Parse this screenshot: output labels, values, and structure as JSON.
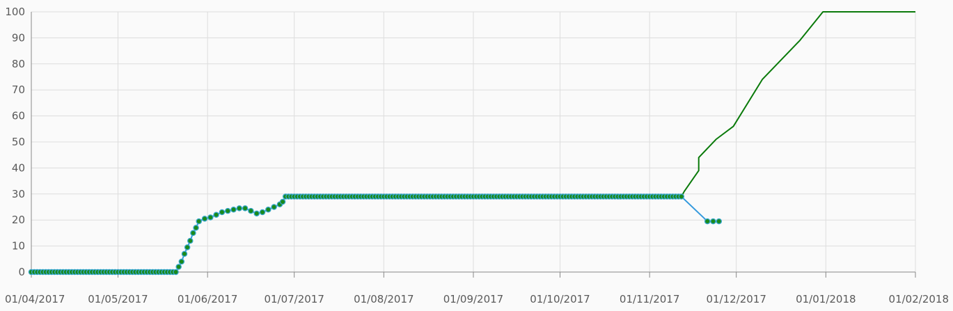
{
  "chart_data": {
    "type": "line",
    "title": "",
    "xlabel": "",
    "ylabel": "",
    "grid": true,
    "legend": "none",
    "x_ticks": [
      "01/04/2017",
      "01/05/2017",
      "01/06/2017",
      "01/07/2017",
      "01/08/2017",
      "01/09/2017",
      "01/10/2017",
      "01/11/2017",
      "01/12/2017",
      "01/01/2018",
      "01/02/2018"
    ],
    "y_ticks": [
      "0",
      "10",
      "20",
      "30",
      "40",
      "50",
      "60",
      "70",
      "80",
      "90",
      "100"
    ],
    "xlim": [
      "2017-04-01",
      "2018-02-01"
    ],
    "ylim": [
      0,
      100
    ],
    "colors": {
      "background": "#fafafa",
      "grid": "#dddddd",
      "axis": "#888888",
      "series_actual": "#3399dd",
      "marker_fill": "#1a8a1a",
      "marker_stroke": "#36a6cc",
      "series_projection": "#0a7a0a"
    },
    "series": [
      {
        "style": "line-with-markers",
        "segments": [
          {
            "from": "2017-04-01",
            "to": "2017-05-21",
            "step_days": 1,
            "value": 0
          },
          {
            "from": "2017-06-28",
            "to": "2017-11-11",
            "step_days": 1,
            "value": 29
          }
        ],
        "points": [
          {
            "x": "2017-05-22",
            "y": 2
          },
          {
            "x": "2017-05-23",
            "y": 4
          },
          {
            "x": "2017-05-24",
            "y": 7
          },
          {
            "x": "2017-05-25",
            "y": 9.5
          },
          {
            "x": "2017-05-26",
            "y": 12
          },
          {
            "x": "2017-05-27",
            "y": 15
          },
          {
            "x": "2017-05-28",
            "y": 17
          },
          {
            "x": "2017-05-29",
            "y": 19.5
          },
          {
            "x": "2017-05-31",
            "y": 20.5
          },
          {
            "x": "2017-06-02",
            "y": 21
          },
          {
            "x": "2017-06-04",
            "y": 22
          },
          {
            "x": "2017-06-06",
            "y": 23
          },
          {
            "x": "2017-06-08",
            "y": 23.5
          },
          {
            "x": "2017-06-10",
            "y": 24
          },
          {
            "x": "2017-06-12",
            "y": 24.5
          },
          {
            "x": "2017-06-14",
            "y": 24.5
          },
          {
            "x": "2017-06-16",
            "y": 23.5
          },
          {
            "x": "2017-06-18",
            "y": 22.5
          },
          {
            "x": "2017-06-20",
            "y": 23
          },
          {
            "x": "2017-06-22",
            "y": 24
          },
          {
            "x": "2017-06-24",
            "y": 25
          },
          {
            "x": "2017-06-26",
            "y": 26
          },
          {
            "x": "2017-06-27",
            "y": 27
          },
          {
            "x": "2017-11-12",
            "y": 29
          },
          {
            "x": "2017-11-21",
            "y": 19.5
          },
          {
            "x": "2017-11-23",
            "y": 19.5
          },
          {
            "x": "2017-11-25",
            "y": 19.5
          }
        ]
      },
      {
        "style": "line",
        "points": [
          {
            "x": "2017-11-12",
            "y": 29
          },
          {
            "x": "2017-11-13",
            "y": 31
          },
          {
            "x": "2017-11-18",
            "y": 39
          },
          {
            "x": "2017-11-18",
            "y": 44
          },
          {
            "x": "2017-11-24",
            "y": 51
          },
          {
            "x": "2017-11-30",
            "y": 56
          },
          {
            "x": "2017-12-10",
            "y": 74
          },
          {
            "x": "2017-12-23",
            "y": 89
          },
          {
            "x": "2017-12-31",
            "y": 100
          },
          {
            "x": "2018-02-01",
            "y": 100
          }
        ]
      }
    ]
  }
}
